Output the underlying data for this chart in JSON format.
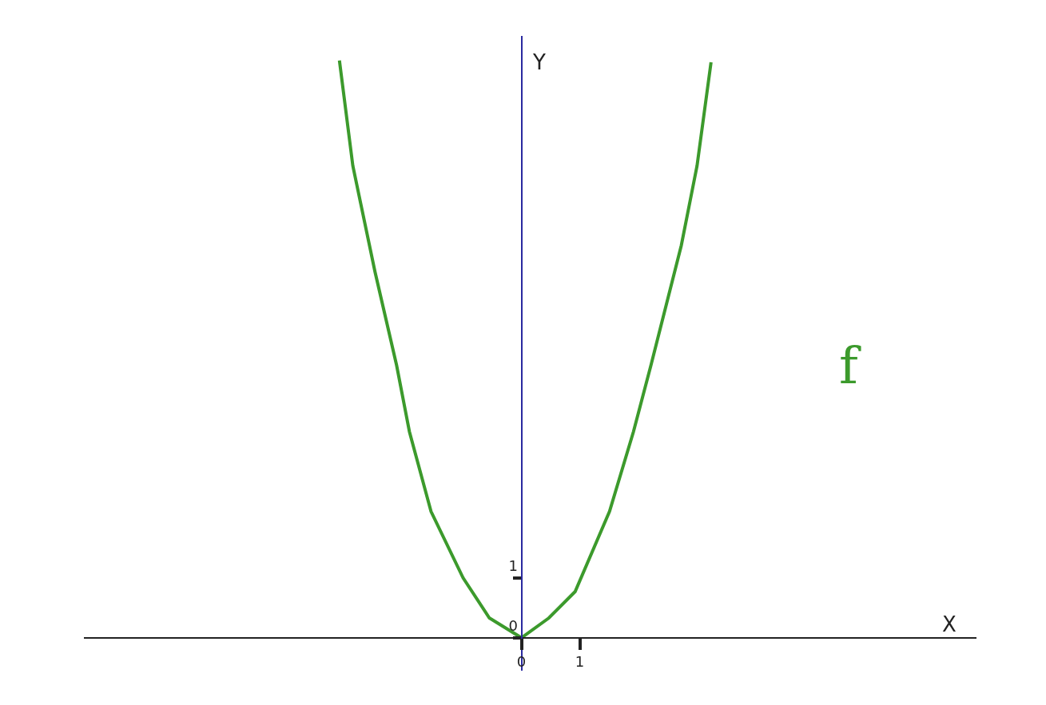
{
  "chart_data": {
    "type": "line",
    "xlabel": "X",
    "ylabel": "Y",
    "series": [
      {
        "name": "f",
        "color": "#3c9a2c",
        "x": [
          -3.12,
          -2.89,
          -2.51,
          -2.14,
          -1.92,
          -1.55,
          -1.0,
          -0.55,
          0,
          0.47,
          0.92,
          1.51,
          1.92,
          2.22,
          2.74,
          3.01,
          3.25
        ],
        "values": [
          9.64,
          7.88,
          6.11,
          4.55,
          3.44,
          2.11,
          1.0,
          0.33,
          0,
          0.33,
          0.77,
          2.11,
          3.44,
          4.55,
          6.55,
          7.88,
          9.61
        ]
      }
    ],
    "xlim": [
      -7.5,
      7.8
    ],
    "ylim": [
      -0.55,
      10.05
    ],
    "xticks": [
      0,
      1
    ],
    "yticks": [
      0,
      1
    ],
    "legend": false,
    "marker": "none",
    "line_style": "solid"
  }
}
